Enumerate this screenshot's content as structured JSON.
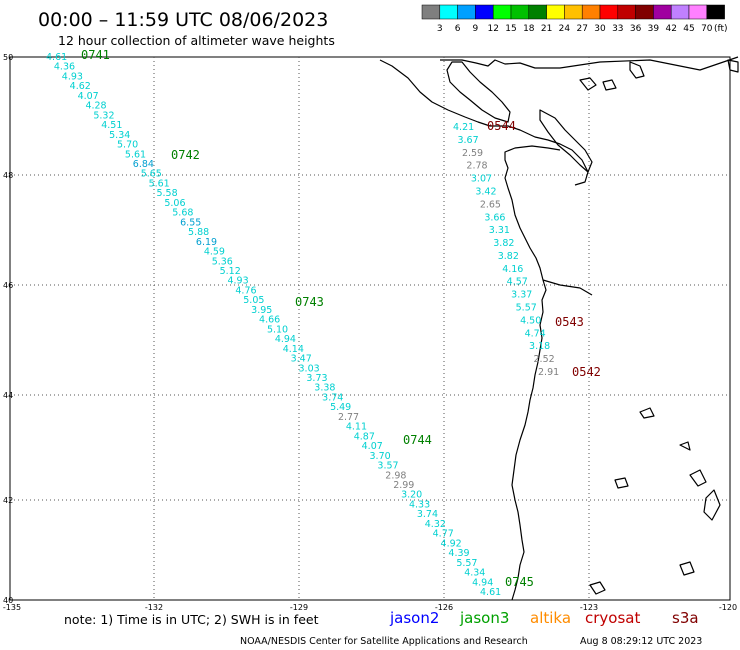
{
  "header": {
    "title": "00:00 – 11:59 UTC 08/06/2023",
    "subtitle": "12 hour collection of altimeter wave heights"
  },
  "legend": {
    "unit": "(ft)",
    "bins": [
      {
        "label": "3",
        "color": "#7f7f7f"
      },
      {
        "label": "6",
        "color": "#00ffff"
      },
      {
        "label": "9",
        "color": "#00a0ff"
      },
      {
        "label": "12",
        "color": "#0000ff"
      },
      {
        "label": "15",
        "color": "#00ff00"
      },
      {
        "label": "18",
        "color": "#00c000"
      },
      {
        "label": "21",
        "color": "#008000"
      },
      {
        "label": "24",
        "color": "#ffff00"
      },
      {
        "label": "27",
        "color": "#ffc000"
      },
      {
        "label": "30",
        "color": "#ff8000"
      },
      {
        "label": "33",
        "color": "#ff0000"
      },
      {
        "label": "36",
        "color": "#c00000"
      },
      {
        "label": "39",
        "color": "#800000"
      },
      {
        "label": "42",
        "color": "#a000a0"
      },
      {
        "label": "45",
        "color": "#c080ff"
      },
      {
        "label": "70",
        "color": "#ff80ff"
      },
      {
        "label": "",
        "color": "#000000"
      }
    ]
  },
  "map": {
    "lat_labels": [
      "50",
      "48",
      "46",
      "44",
      "42",
      "40"
    ],
    "lon_labels": [
      "-135",
      "-132",
      "-129",
      "-126",
      "-123",
      "-120"
    ],
    "pass_times": [
      {
        "label": "0741",
        "color": "#008000"
      },
      {
        "label": "0742",
        "color": "#008000"
      },
      {
        "label": "0743",
        "color": "#008000"
      },
      {
        "label": "0744",
        "color": "#008000"
      },
      {
        "label": "0745",
        "color": "#008000"
      },
      {
        "label": "0544",
        "color": "#800000"
      },
      {
        "label": "0543",
        "color": "#800000"
      },
      {
        "label": "0542",
        "color": "#800000"
      }
    ],
    "track_a": [
      {
        "v": "4.61",
        "c": "#00d0d0"
      },
      {
        "v": "4.36",
        "c": "#00d0d0"
      },
      {
        "v": "4.93",
        "c": "#00d0d0"
      },
      {
        "v": "4.62",
        "c": "#00d0d0"
      },
      {
        "v": "4.07",
        "c": "#00d0d0"
      },
      {
        "v": "4.28",
        "c": "#00d0d0"
      },
      {
        "v": "5.32",
        "c": "#00d0d0"
      },
      {
        "v": "4.51",
        "c": "#00d0d0"
      },
      {
        "v": "5.34",
        "c": "#00d0d0"
      },
      {
        "v": "5.70",
        "c": "#00d0d0"
      },
      {
        "v": "5.61",
        "c": "#00d0d0"
      },
      {
        "v": "6.84",
        "c": "#009fd0"
      },
      {
        "v": "5.65",
        "c": "#00d0d0"
      },
      {
        "v": "5.61",
        "c": "#00d0d0"
      },
      {
        "v": "5.58",
        "c": "#00d0d0"
      },
      {
        "v": "5.06",
        "c": "#00d0d0"
      },
      {
        "v": "5.68",
        "c": "#00d0d0"
      },
      {
        "v": "6.55",
        "c": "#009fd0"
      },
      {
        "v": "5.88",
        "c": "#00d0d0"
      },
      {
        "v": "6.19",
        "c": "#009fd0"
      },
      {
        "v": "4.59",
        "c": "#00d0d0"
      },
      {
        "v": "5.36",
        "c": "#00d0d0"
      },
      {
        "v": "5.12",
        "c": "#00d0d0"
      },
      {
        "v": "4.93",
        "c": "#00d0d0"
      },
      {
        "v": "4.76",
        "c": "#00d0d0"
      },
      {
        "v": "5.05",
        "c": "#00d0d0"
      },
      {
        "v": "3.95",
        "c": "#00d0d0"
      },
      {
        "v": "4.66",
        "c": "#00d0d0"
      },
      {
        "v": "5.10",
        "c": "#00d0d0"
      },
      {
        "v": "4.94",
        "c": "#00d0d0"
      },
      {
        "v": "4.14",
        "c": "#00d0d0"
      },
      {
        "v": "3.47",
        "c": "#00d0d0"
      },
      {
        "v": "3.03",
        "c": "#00d0d0"
      },
      {
        "v": "3.73",
        "c": "#00d0d0"
      },
      {
        "v": "3.38",
        "c": "#00d0d0"
      },
      {
        "v": "3.74",
        "c": "#00d0d0"
      },
      {
        "v": "5.49",
        "c": "#00d0d0"
      },
      {
        "v": "2.77",
        "c": "#808080"
      },
      {
        "v": "4.11",
        "c": "#00d0d0"
      },
      {
        "v": "4.87",
        "c": "#00d0d0"
      },
      {
        "v": "4.07",
        "c": "#00d0d0"
      },
      {
        "v": "3.70",
        "c": "#00d0d0"
      },
      {
        "v": "3.57",
        "c": "#00d0d0"
      },
      {
        "v": "2.98",
        "c": "#808080"
      },
      {
        "v": "2.99",
        "c": "#808080"
      },
      {
        "v": "3.20",
        "c": "#00d0d0"
      },
      {
        "v": "4.33",
        "c": "#00d0d0"
      },
      {
        "v": "3.74",
        "c": "#00d0d0"
      },
      {
        "v": "4.32",
        "c": "#00d0d0"
      },
      {
        "v": "4.77",
        "c": "#00d0d0"
      },
      {
        "v": "4.92",
        "c": "#00d0d0"
      },
      {
        "v": "4.39",
        "c": "#00d0d0"
      },
      {
        "v": "5.57",
        "c": "#00d0d0"
      },
      {
        "v": "4.34",
        "c": "#00d0d0"
      },
      {
        "v": "4.94",
        "c": "#00d0d0"
      },
      {
        "v": "4.61",
        "c": "#00d0d0"
      }
    ],
    "track_b": [
      {
        "v": "4.21",
        "c": "#00d0d0"
      },
      {
        "v": "3.67",
        "c": "#00d0d0"
      },
      {
        "v": "2.59",
        "c": "#808080"
      },
      {
        "v": "2.78",
        "c": "#808080"
      },
      {
        "v": "3.07",
        "c": "#00d0d0"
      },
      {
        "v": "3.42",
        "c": "#00d0d0"
      },
      {
        "v": "2.65",
        "c": "#808080"
      },
      {
        "v": "3.66",
        "c": "#00d0d0"
      },
      {
        "v": "3.31",
        "c": "#00d0d0"
      },
      {
        "v": "3.82",
        "c": "#00d0d0"
      },
      {
        "v": "3.82",
        "c": "#00d0d0"
      },
      {
        "v": "4.16",
        "c": "#00d0d0"
      },
      {
        "v": "4.57",
        "c": "#00d0d0"
      },
      {
        "v": "3.37",
        "c": "#00d0d0"
      },
      {
        "v": "5.57",
        "c": "#00d0d0"
      },
      {
        "v": "4.50",
        "c": "#00d0d0"
      },
      {
        "v": "4.74",
        "c": "#00d0d0"
      },
      {
        "v": "3.18",
        "c": "#00d0d0"
      },
      {
        "v": "2.52",
        "c": "#808080"
      },
      {
        "v": "2.91",
        "c": "#808080"
      }
    ]
  },
  "footer": {
    "note": "note: 1) Time is in UTC; 2) SWH is in feet",
    "sats": [
      {
        "label": "jason2",
        "color": "#0000ff"
      },
      {
        "label": "jason3",
        "color": "#00a000"
      },
      {
        "label": "altika",
        "color": "#ff8c00"
      },
      {
        "label": "cryosat",
        "color": "#c00000"
      },
      {
        "label": "s3a",
        "color": "#800000"
      }
    ],
    "credit": "NOAA/NESDIS Center for Satellite Applications and Research",
    "timestamp": "Aug  8 08:29:12 UTC 2023"
  }
}
